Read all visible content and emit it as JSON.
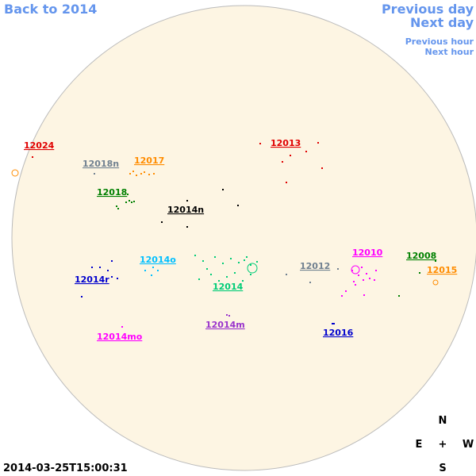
{
  "nav": {
    "back": "Back to 2014",
    "previous_day": "Previous day",
    "next_day": "Next day",
    "previous_hour": "Previous hour",
    "next_hour": "Next hour"
  },
  "regions": [
    {
      "label": "12024",
      "color": "#e00000"
    },
    {
      "label": "12018n",
      "color": "#708090"
    },
    {
      "label": "12017",
      "color": "#ff8c00"
    },
    {
      "label": "12018",
      "color": "#008000"
    },
    {
      "label": "12014n",
      "color": "#000000"
    },
    {
      "label": "12013",
      "color": "#e00000"
    },
    {
      "label": "12014o",
      "color": "#00bfff"
    },
    {
      "label": "12014r",
      "color": "#0000cd"
    },
    {
      "label": "12014",
      "color": "#00cc77"
    },
    {
      "label": "12012",
      "color": "#708090"
    },
    {
      "label": "12010",
      "color": "#ff00ff"
    },
    {
      "label": "12008",
      "color": "#008000"
    },
    {
      "label": "12015",
      "color": "#ff8c00"
    },
    {
      "label": "12014m",
      "color": "#9932cc"
    },
    {
      "label": "12014mo",
      "color": "#ff00ff"
    },
    {
      "label": "12016",
      "color": "#0000cd"
    }
  ],
  "compass": {
    "north": "N",
    "east": "E",
    "center": "+",
    "west": "W",
    "south": "S"
  },
  "timestamp": "2014-03-25T15:00:31"
}
